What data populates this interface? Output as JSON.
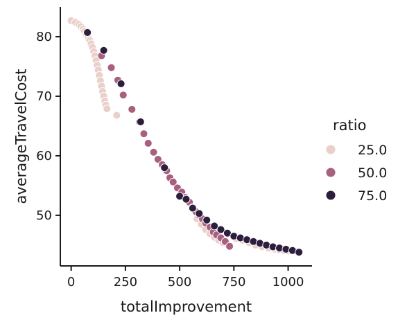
{
  "chart_data": {
    "type": "scatter",
    "title": "",
    "xlabel": "totalImprovement",
    "ylabel": "averageTravelCost",
    "xlim": [
      -50,
      1110
    ],
    "ylim": [
      41.5,
      85
    ],
    "xticks": [
      0,
      250,
      500,
      750,
      1000
    ],
    "yticks": [
      50,
      60,
      70,
      80
    ],
    "x_tick_labels": [
      "0",
      "250",
      "500",
      "750",
      "1000"
    ],
    "y_tick_labels": [
      "50",
      "60",
      "70",
      "80"
    ],
    "grid": false,
    "legend": {
      "title": "ratio",
      "placement": "right"
    },
    "series": [
      {
        "name": "25.0",
        "color": "#ead0cb",
        "points": [
          [
            0,
            82.7
          ],
          [
            20,
            82.4
          ],
          [
            35,
            82.1
          ],
          [
            45,
            81.7
          ],
          [
            55,
            81.3
          ],
          [
            62,
            80.9
          ],
          [
            70,
            80.4
          ],
          [
            78,
            79.9
          ],
          [
            85,
            79.4
          ],
          [
            92,
            78.8
          ],
          [
            98,
            78.2
          ],
          [
            104,
            77.5
          ],
          [
            110,
            76.8
          ],
          [
            115,
            76.0
          ],
          [
            120,
            75.2
          ],
          [
            125,
            74.4
          ],
          [
            130,
            73.5
          ],
          [
            135,
            72.6
          ],
          [
            140,
            71.7
          ],
          [
            145,
            70.8
          ],
          [
            150,
            70.0
          ],
          [
            155,
            69.2
          ],
          [
            160,
            68.5
          ],
          [
            165,
            67.9
          ],
          [
            210,
            66.8
          ],
          [
            580,
            49.4
          ],
          [
            600,
            48.5
          ],
          [
            620,
            47.6
          ],
          [
            640,
            46.9
          ],
          [
            660,
            46.3
          ],
          [
            680,
            45.8
          ],
          [
            700,
            45.4
          ],
          [
            720,
            45.1
          ],
          [
            760,
            46.1
          ],
          [
            790,
            45.8
          ],
          [
            820,
            45.4
          ],
          [
            850,
            45.0
          ],
          [
            880,
            44.7
          ],
          [
            910,
            44.5
          ],
          [
            940,
            44.3
          ],
          [
            960,
            44.2
          ],
          [
            980,
            44.1
          ],
          [
            1000,
            44.0
          ],
          [
            1020,
            44.0
          ],
          [
            1040,
            43.9
          ]
        ]
      },
      {
        "name": "50.0",
        "color": "#a8607f",
        "points": [
          [
            140,
            76.8
          ],
          [
            185,
            74.8
          ],
          [
            215,
            72.7
          ],
          [
            240,
            70.2
          ],
          [
            280,
            67.8
          ],
          [
            315,
            65.7
          ],
          [
            335,
            63.7
          ],
          [
            355,
            62.1
          ],
          [
            380,
            60.6
          ],
          [
            400,
            59.4
          ],
          [
            420,
            58.5
          ],
          [
            440,
            57.5
          ],
          [
            455,
            56.3
          ],
          [
            470,
            55.6
          ],
          [
            490,
            54.6
          ],
          [
            510,
            53.9
          ],
          [
            525,
            53.0
          ],
          [
            545,
            52.2
          ],
          [
            560,
            51.3
          ],
          [
            575,
            50.6
          ],
          [
            590,
            50.0
          ],
          [
            605,
            49.4
          ],
          [
            620,
            48.7
          ],
          [
            640,
            48.0
          ],
          [
            655,
            47.2
          ],
          [
            670,
            46.7
          ],
          [
            690,
            46.2
          ],
          [
            710,
            45.6
          ],
          [
            730,
            44.8
          ]
        ]
      },
      {
        "name": "75.0",
        "color": "#2d1e3e",
        "points": [
          [
            75,
            80.7
          ],
          [
            150,
            77.7
          ],
          [
            230,
            72.1
          ],
          [
            320,
            65.7
          ],
          [
            430,
            58.0
          ],
          [
            500,
            53.2
          ],
          [
            530,
            52.7
          ],
          [
            560,
            51.2
          ],
          [
            590,
            50.3
          ],
          [
            625,
            49.2
          ],
          [
            660,
            48.2
          ],
          [
            690,
            47.6
          ],
          [
            720,
            47.0
          ],
          [
            750,
            46.5
          ],
          [
            780,
            46.2
          ],
          [
            810,
            45.9
          ],
          [
            840,
            45.6
          ],
          [
            870,
            45.3
          ],
          [
            900,
            45.0
          ],
          [
            930,
            44.7
          ],
          [
            960,
            44.5
          ],
          [
            990,
            44.3
          ],
          [
            1020,
            44.1
          ],
          [
            1050,
            43.8
          ]
        ]
      }
    ]
  }
}
